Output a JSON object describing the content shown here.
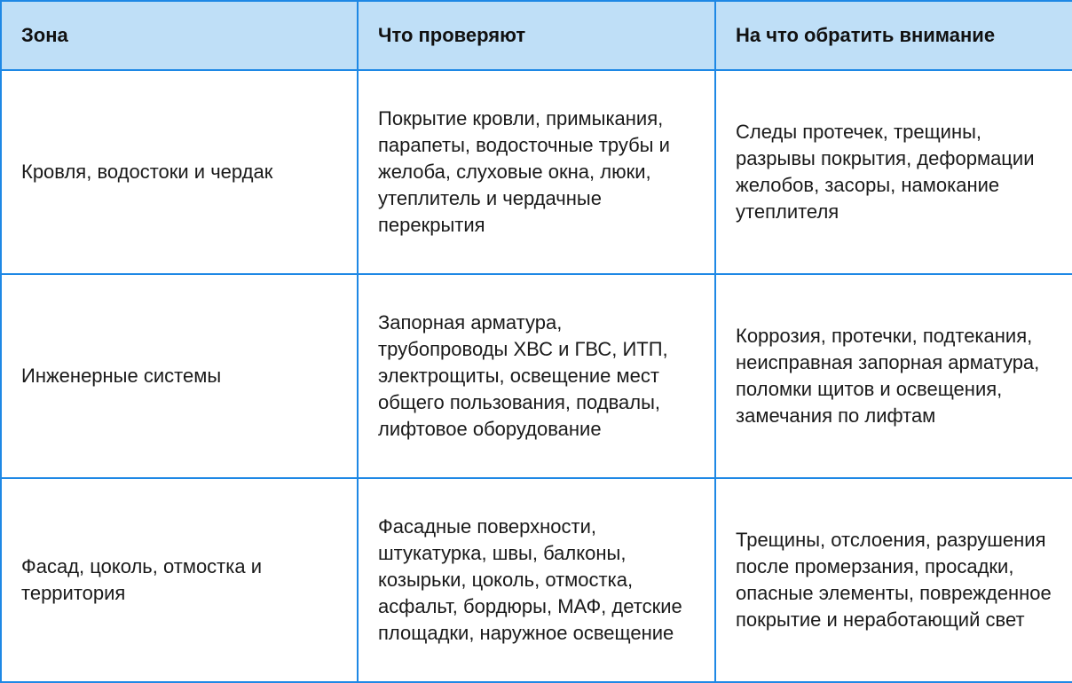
{
  "colors": {
    "border": "#1e88e5",
    "header_bg": "#bfdff7"
  },
  "headers": [
    "Зона",
    "Что проверяют",
    "На что обратить внимание"
  ],
  "rows": [
    [
      "Кровля, водостоки и чердак",
      "Покрытие кровли, примыкания, парапеты, водосточные трубы и желоба, слуховые окна, люки, утеплитель и чердачные перекрытия",
      "Следы протечек, трещины, разрывы покрытия, деформации желобов, засоры, намокание утеплителя"
    ],
    [
      "Инженерные системы",
      "Запорная арматура, трубопроводы ХВС и ГВС, ИТП, электрощиты, освещение мест общего пользования, подвалы, лифтовое оборудование",
      "Коррозия, протечки, подтекания, неисправная запорная арматура, поломки щитов и освещения, замечания по лифтам"
    ],
    [
      "Фасад, цоколь, отмостка и территория",
      "Фасадные поверхности, штукатурка, швы, балконы, козырьки, цоколь, отмостка, асфальт, бордюры, МАФ, детские площадки, наружное освещение",
      "Трещины, отслоения, разрушения после промерзания, просадки, опасные элементы, поврежденное покрытие и неработающий свет"
    ]
  ]
}
